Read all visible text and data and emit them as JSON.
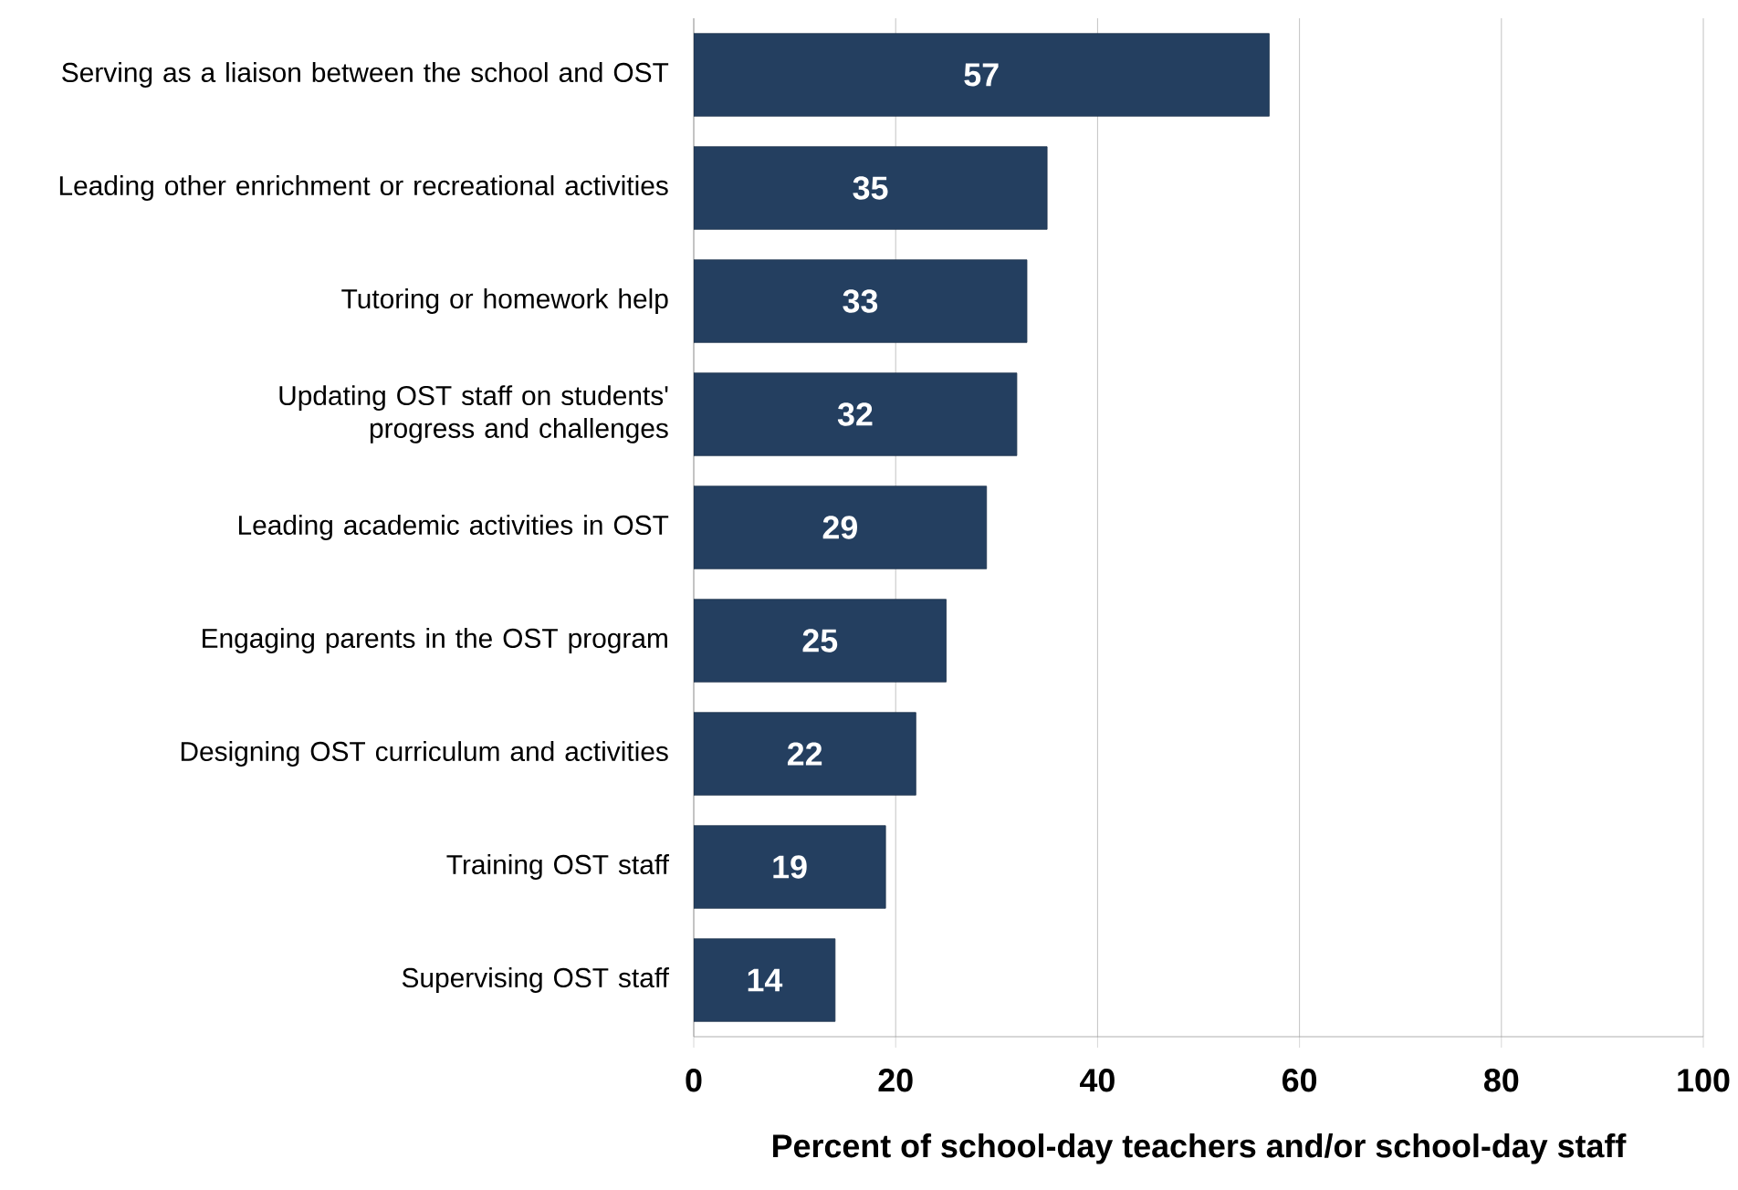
{
  "chart_data": {
    "type": "bar",
    "orientation": "horizontal",
    "categories": [
      "Serving as a liaison between the school and OST",
      "Leading other enrichment or recreational activities",
      "Tutoring or homework help",
      "Updating OST staff on students' progress and challenges",
      "Leading academic activities in OST",
      "Engaging parents in the OST program",
      "Designing OST curriculum and activities",
      "Training OST staff",
      "Supervising OST staff"
    ],
    "values": [
      57,
      35,
      33,
      32,
      29,
      25,
      22,
      19,
      14
    ],
    "color": "#243f60",
    "xlabel": "Percent of school-day teachers and/or school-day staff",
    "xlim": [
      0,
      100
    ],
    "xticks": [
      0,
      20,
      40,
      60,
      80,
      100
    ],
    "grid": "x",
    "data_labels": true
  }
}
